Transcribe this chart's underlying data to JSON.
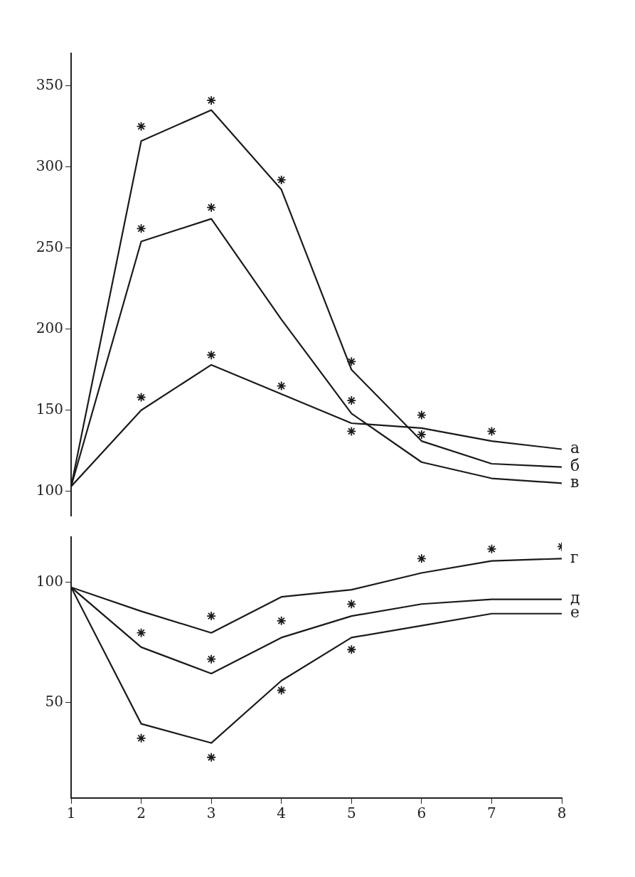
{
  "chart_data": [
    {
      "type": "line",
      "xlim": [
        1,
        8
      ],
      "xticks": [
        1,
        2,
        3,
        4,
        5,
        6,
        7,
        8
      ],
      "ylim": [
        85,
        370
      ],
      "yticks": [
        100,
        150,
        200,
        250,
        300,
        350
      ],
      "tick_labels": "y",
      "grid": false,
      "legend": false,
      "series": [
        {
          "name": "а",
          "color": "#1a1a1a",
          "marker": "none",
          "x": [
            1,
            2,
            3,
            4,
            5,
            6,
            7,
            8
          ],
          "values": [
            103,
            150,
            178,
            160,
            142,
            139,
            131,
            126
          ]
        },
        {
          "name": "б",
          "color": "#1a1a1a",
          "marker": "none",
          "x": [
            1,
            2,
            3,
            4,
            5,
            6,
            7,
            8
          ],
          "values": [
            103,
            316,
            335,
            286,
            175,
            131,
            117,
            115
          ]
        },
        {
          "name": "в",
          "color": "#1a1a1a",
          "marker": "none",
          "x": [
            1,
            2,
            3,
            4,
            5,
            6,
            7,
            8
          ],
          "values": [
            103,
            254,
            268,
            206,
            148,
            118,
            108,
            105
          ]
        },
        {
          "type": "scatter",
          "color": "#1a1a1a",
          "marker": "cross",
          "x": [
            2,
            2,
            2,
            3,
            3,
            3,
            4,
            4,
            5,
            5,
            5,
            6,
            6,
            7
          ],
          "values": [
            325,
            262,
            158,
            341,
            275,
            184,
            292,
            165,
            180,
            156,
            137,
            147,
            135,
            137
          ]
        }
      ]
    },
    {
      "type": "line",
      "xlim": [
        1,
        8
      ],
      "xticks": [
        1,
        2,
        3,
        4,
        5,
        6,
        7,
        8
      ],
      "ylim": [
        10,
        119
      ],
      "yticks": [
        50,
        100
      ],
      "grid": false,
      "legend": false,
      "series": [
        {
          "name": "г",
          "color": "#1a1a1a",
          "marker": "none",
          "x": [
            1,
            2,
            3,
            4,
            5,
            6,
            7,
            8
          ],
          "values": [
            98,
            88,
            79,
            94,
            97,
            104,
            109,
            110
          ]
        },
        {
          "name": "д",
          "color": "#1a1a1a",
          "marker": "none",
          "x": [
            1,
            2,
            3,
            4,
            5,
            6,
            7,
            8
          ],
          "values": [
            98,
            73,
            62,
            77,
            86,
            91,
            93,
            93
          ]
        },
        {
          "name": "е",
          "color": "#1a1a1a",
          "marker": "none",
          "x": [
            1,
            2,
            3,
            4,
            5,
            6,
            7,
            8
          ],
          "values": [
            98,
            41,
            33,
            59,
            77,
            82,
            87,
            87
          ]
        },
        {
          "type": "scatter",
          "color": "#1a1a1a",
          "marker": "cross",
          "x": [
            2,
            2,
            3,
            3,
            3,
            4,
            4,
            5,
            5,
            6,
            7,
            8
          ],
          "values": [
            79,
            35,
            86,
            68,
            27,
            84,
            55,
            91,
            72,
            110,
            114,
            115
          ]
        }
      ]
    }
  ]
}
